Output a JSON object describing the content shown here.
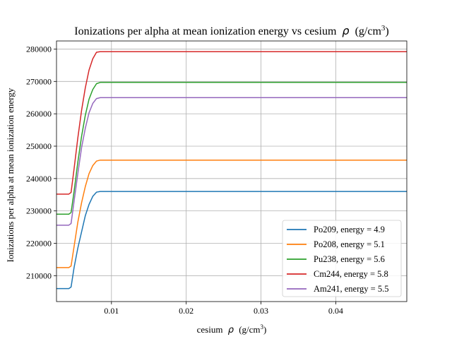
{
  "chart_data": {
    "type": "line",
    "title": "Ionizations per alpha at mean ionization energy vs cesium",
    "title_rho": "ρ",
    "title_unit": "(g/cm",
    "title_exp": "3",
    "title_close": ")",
    "xlabel": "cesium",
    "xlabel_rho": "ρ",
    "xlabel_unit": "(g/cm",
    "xlabel_exp": "3",
    "xlabel_close": ")",
    "ylabel": "Ionizations per alpha at mean ionization energy",
    "xlim": [
      0.00265,
      0.0495
    ],
    "ylim": [
      202000,
      282500
    ],
    "xticks": [
      0.01,
      0.02,
      0.03,
      0.04
    ],
    "xtick_labels": [
      "0.01",
      "0.02",
      "0.03",
      "0.04"
    ],
    "yticks": [
      210000,
      220000,
      230000,
      240000,
      250000,
      260000,
      270000,
      280000
    ],
    "ytick_labels": [
      "210000",
      "220000",
      "230000",
      "240000",
      "250000",
      "260000",
      "270000",
      "280000"
    ],
    "grid": true,
    "legend_position": "lower-right",
    "series": [
      {
        "name": "Po209, energy = 4.9",
        "color": "#1f77b4",
        "x": [
          0.00265,
          0.0043,
          0.0046,
          0.005,
          0.0055,
          0.006,
          0.0065,
          0.007,
          0.0075,
          0.008,
          0.0085,
          0.0495
        ],
        "y": [
          206000,
          206000,
          206500,
          212500,
          218500,
          223500,
          228500,
          232000,
          234500,
          235800,
          236000,
          236000
        ]
      },
      {
        "name": "Po208, energy = 5.1",
        "color": "#ff7f0e",
        "x": [
          0.00265,
          0.0043,
          0.0046,
          0.005,
          0.0055,
          0.006,
          0.0065,
          0.007,
          0.0075,
          0.008,
          0.0085,
          0.0495
        ],
        "y": [
          212500,
          212500,
          213000,
          219000,
          226500,
          232500,
          237500,
          241500,
          244000,
          245400,
          245700,
          245700
        ]
      },
      {
        "name": "Pu238, energy = 5.6",
        "color": "#2ca02c",
        "x": [
          0.00265,
          0.0043,
          0.0046,
          0.005,
          0.0055,
          0.006,
          0.0065,
          0.007,
          0.0075,
          0.008,
          0.0085,
          0.0495
        ],
        "y": [
          229000,
          229000,
          229500,
          236000,
          245000,
          253000,
          259500,
          264500,
          267500,
          269300,
          269700,
          269700
        ]
      },
      {
        "name": "Cm244, energy = 5.8",
        "color": "#d62728",
        "x": [
          0.00265,
          0.0043,
          0.0046,
          0.005,
          0.0055,
          0.006,
          0.0065,
          0.007,
          0.0075,
          0.008,
          0.0085,
          0.0495
        ],
        "y": [
          235200,
          235200,
          235700,
          243000,
          252500,
          261000,
          268000,
          273500,
          277000,
          279000,
          279200,
          279200
        ]
      },
      {
        "name": "Am241, energy = 5.5",
        "color": "#9467bd",
        "x": [
          0.00265,
          0.0043,
          0.0046,
          0.005,
          0.0055,
          0.006,
          0.0065,
          0.007,
          0.0075,
          0.008,
          0.0085,
          0.0495
        ],
        "y": [
          225600,
          225600,
          226100,
          233000,
          241500,
          249500,
          255500,
          260300,
          263200,
          264700,
          265000,
          265000
        ]
      }
    ]
  }
}
